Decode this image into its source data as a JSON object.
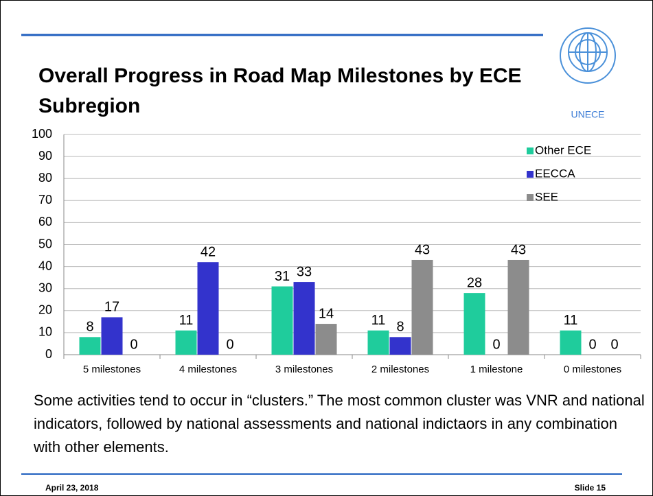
{
  "slide": {
    "title": "Overall Progress in Road Map Milestones by ECE Subregion",
    "logo_text": "UNECE",
    "body": "Some activities tend to occur in “clusters.” The most common cluster was VNR and national indicators, followed by national assessments and national indictaors in any combination with other elements.",
    "date": "April 23, 2018",
    "slide_number": "Slide 15"
  },
  "chart_data": {
    "type": "bar",
    "categories": [
      "5 milestones",
      "4 milestones",
      "3 milestones",
      "2 milestones",
      "1 milestone",
      "0 milestones"
    ],
    "series": [
      {
        "name": "Other ECE",
        "color": "#1fcc9c",
        "values": [
          8,
          11,
          31,
          11,
          28,
          11
        ]
      },
      {
        "name": "EECCA",
        "color": "#3333cc",
        "values": [
          17,
          42,
          33,
          8,
          0,
          0
        ]
      },
      {
        "name": "SEE",
        "color": "#8c8c8c",
        "values": [
          0,
          0,
          14,
          43,
          43,
          0
        ]
      }
    ],
    "ylim": [
      0,
      100
    ],
    "yticks": [
      0,
      10,
      20,
      30,
      40,
      50,
      60,
      70,
      80,
      90,
      100
    ],
    "grid": true,
    "legend": "top-right"
  }
}
